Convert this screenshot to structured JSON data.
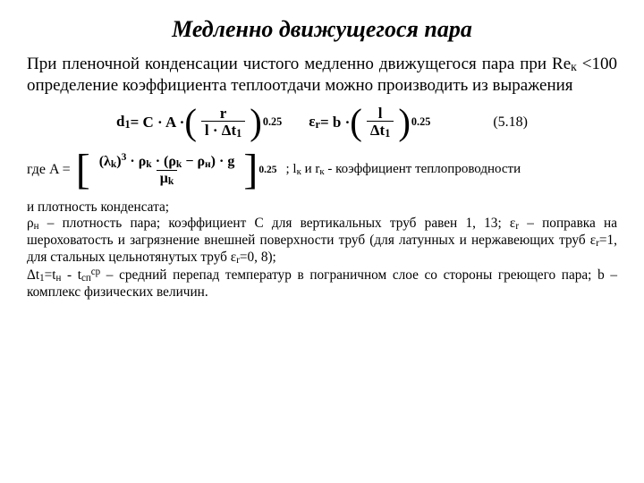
{
  "title": "Медленно движущегося пара",
  "intro": {
    "pre": "При пленочной конденсации чистого медленно движущегося пара при Re",
    "sub": "к",
    "post": " <100 определение коэффициента теплоотдачи можно производить из выражения"
  },
  "eq518": {
    "d1": "d",
    "d1sub": "1",
    "eq": " = C · A ·",
    "frac1_num": "r",
    "frac1_den": "l · Δt",
    "frac1_den_sub": "1",
    "pow": "0.25",
    "eps": "ε",
    "epssub": "r",
    "eq2": " = b ·",
    "frac2_num": "l",
    "frac2_den": "Δt",
    "frac2_den_sub": "1",
    "num": "(5.18)"
  },
  "eqA": {
    "lead": "где   A =",
    "num_open": "(λ",
    "num_k": "k",
    "num_close_p3": ")",
    "p3": "3",
    "dot": " · ρ",
    "rho_k": "k",
    "dot2": " · (ρ",
    "rho_k2": "k",
    "minus": " − ρ",
    "rho_n": "н",
    "close2": ") · g",
    "den": "μ",
    "den_k": "k",
    "pow": "0.25",
    "trail1": "; l",
    "trail1sub": "к",
    "trail2": " и r",
    "trail2sub": "к",
    "trail3": " - коэффициент теплопроводности"
  },
  "notes": {
    "l1": "и плотность конденсата;",
    "l2a": "ρ",
    "l2a_sub": "н",
    "l2b": " – плотность пара; коэффициент C для вертикальных труб равен 1, 13; ε",
    "l2b_sub": "r",
    "l2c": " – поправка на шероховатость и загрязнение внешней поверхности труб (для латунных и нержавеющих труб ε",
    "l2c_sub": "r",
    "l2d": "=1, для стальных цельнотянутых труб ε",
    "l2d_sub": "r",
    "l2e": "=0, 8);",
    "l3a": "Δt",
    "l3a_sub": "1",
    "l3b": "=t",
    "l3b_sub": "н",
    "l3c": " - t",
    "l3c_sub": "сп",
    "l3c_sup": "ср",
    "l3d": " – средний перепад температур в пограничном слое со стороны греющего пара; b – комплекс физических величин."
  },
  "colors": {
    "bg": "#ffffff",
    "fg": "#000000"
  }
}
